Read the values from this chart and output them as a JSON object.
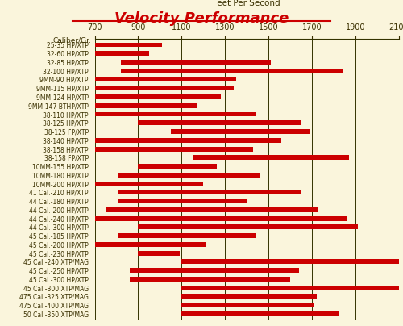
{
  "title": "Velocity Performance",
  "x_axis_label": "Feet Per Second",
  "caliber_label": "Caliber/Gr.",
  "bg_color": "#FAF5DC",
  "bar_color": "#CC0000",
  "title_color": "#CC0000",
  "text_color": "#3A3000",
  "x_min": 700,
  "x_max": 2100,
  "x_ticks": [
    700,
    900,
    1100,
    1300,
    1500,
    1700,
    1900,
    2100
  ],
  "categories": [
    "25-35 HP/XTP",
    "32-60 HP/XTP",
    "32-85 HP/XTP",
    "32-100 HP/XTP",
    "9MM-90 HP/XTP",
    "9MM-115 HP/XTP",
    "9MM-124 HP/XTP",
    "9MM-147 BTHP/XTP",
    "38-110 HP/XTP",
    "38-125 HP/XTP",
    "38-125 FP/XTP",
    "38-140 HP/XTP",
    "38-158 HP/XTP",
    "38-158 FP/XTP",
    "10MM-155 HP/XTP",
    "10MM-180 HP/XTP",
    "10MM-200 HP/XTP",
    "41 Cal.-210 HP/XTP",
    "44 Cal.-180 HP/XTP",
    "44 Cal.-200 HP/XTP",
    "44 Cal.-240 HP/XTP",
    "44 Cal.-300 HP/XTP",
    "45 Cal.-185 HP/XTP",
    "45 Cal.-200 HP/XTP",
    "45 Cal.-230 HP/XTP",
    "45 Cal.-240 XTP/MAG",
    "45 Cal.-250 HP/XTP",
    "45 Cal.-300 HP/XTP",
    "45 Cal.-300 XTP/MAG",
    "475 Cal.-325 XTP/MAG",
    "475 Cal.-400 XTP/MAG",
    "50 Cal.-350 XTP/MAG"
  ],
  "bar_starts": [
    700,
    700,
    820,
    820,
    700,
    700,
    700,
    700,
    700,
    900,
    1050,
    700,
    700,
    1150,
    900,
    810,
    700,
    810,
    810,
    750,
    700,
    900,
    810,
    700,
    900,
    1100,
    860,
    860,
    1100,
    1100,
    1100,
    1100
  ],
  "bar_ends": [
    1010,
    950,
    1510,
    1840,
    1350,
    1340,
    1280,
    1170,
    1440,
    1650,
    1690,
    1560,
    1430,
    1870,
    1260,
    1460,
    1200,
    1650,
    1400,
    1730,
    1860,
    1910,
    1440,
    1210,
    1090,
    2100,
    1640,
    1600,
    2100,
    1720,
    1710,
    1820
  ]
}
